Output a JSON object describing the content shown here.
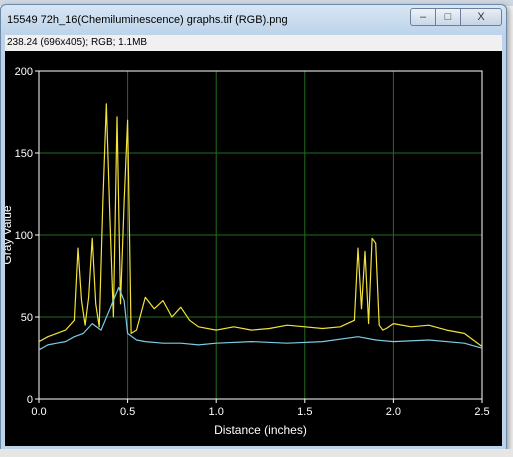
{
  "window": {
    "title": "15549 72h_16(Chemiluminescence) graphs.tif (RGB).png",
    "info": "238.24  (696x405); RGB; 1.1MB",
    "buttons": {
      "minimize": "–",
      "maximize": "□",
      "close": "X"
    }
  },
  "chart_data": {
    "type": "line",
    "xlabel": "Distance (inches)",
    "ylabel": "Gray Value",
    "xlim": [
      0,
      2.5
    ],
    "ylim": [
      0,
      200
    ],
    "x_ticks": [
      "0.0",
      "0.5",
      "1.0",
      "1.5",
      "2.0",
      "2.5"
    ],
    "y_ticks": [
      "0",
      "50",
      "100",
      "150",
      "200"
    ],
    "grid": true,
    "colors": {
      "background": "#000000",
      "grid": "#1f6e1f",
      "axis": "#ffffff",
      "yellow": "#f2e23a",
      "cyan": "#7ecbe3"
    },
    "series": [
      {
        "color": "#f2e23a",
        "x": [
          0.0,
          0.05,
          0.1,
          0.15,
          0.2,
          0.22,
          0.24,
          0.26,
          0.28,
          0.3,
          0.32,
          0.34,
          0.36,
          0.38,
          0.4,
          0.42,
          0.44,
          0.46,
          0.48,
          0.5,
          0.52,
          0.55,
          0.6,
          0.65,
          0.7,
          0.75,
          0.8,
          0.85,
          0.9,
          1.0,
          1.1,
          1.2,
          1.3,
          1.4,
          1.5,
          1.6,
          1.7,
          1.78,
          1.8,
          1.82,
          1.84,
          1.86,
          1.88,
          1.9,
          1.92,
          1.94,
          1.96,
          2.0,
          2.1,
          2.2,
          2.3,
          2.4,
          2.5
        ],
        "y": [
          35,
          38,
          40,
          42,
          48,
          92,
          60,
          45,
          62,
          98,
          58,
          44,
          120,
          180,
          110,
          50,
          172,
          58,
          120,
          170,
          40,
          42,
          62,
          55,
          60,
          50,
          56,
          48,
          44,
          42,
          44,
          42,
          43,
          45,
          44,
          43,
          44,
          48,
          92,
          55,
          90,
          46,
          98,
          95,
          45,
          42,
          43,
          46,
          44,
          45,
          42,
          40,
          32
        ]
      },
      {
        "color": "#7ecbe3",
        "x": [
          0.0,
          0.05,
          0.1,
          0.15,
          0.2,
          0.25,
          0.3,
          0.35,
          0.4,
          0.45,
          0.48,
          0.5,
          0.55,
          0.6,
          0.7,
          0.8,
          0.9,
          1.0,
          1.2,
          1.4,
          1.6,
          1.8,
          1.9,
          2.0,
          2.2,
          2.4,
          2.5
        ],
        "y": [
          30,
          33,
          34,
          35,
          38,
          40,
          46,
          42,
          55,
          68,
          60,
          40,
          36,
          35,
          34,
          34,
          33,
          34,
          35,
          34,
          35,
          38,
          36,
          35,
          36,
          34,
          31
        ]
      }
    ]
  }
}
